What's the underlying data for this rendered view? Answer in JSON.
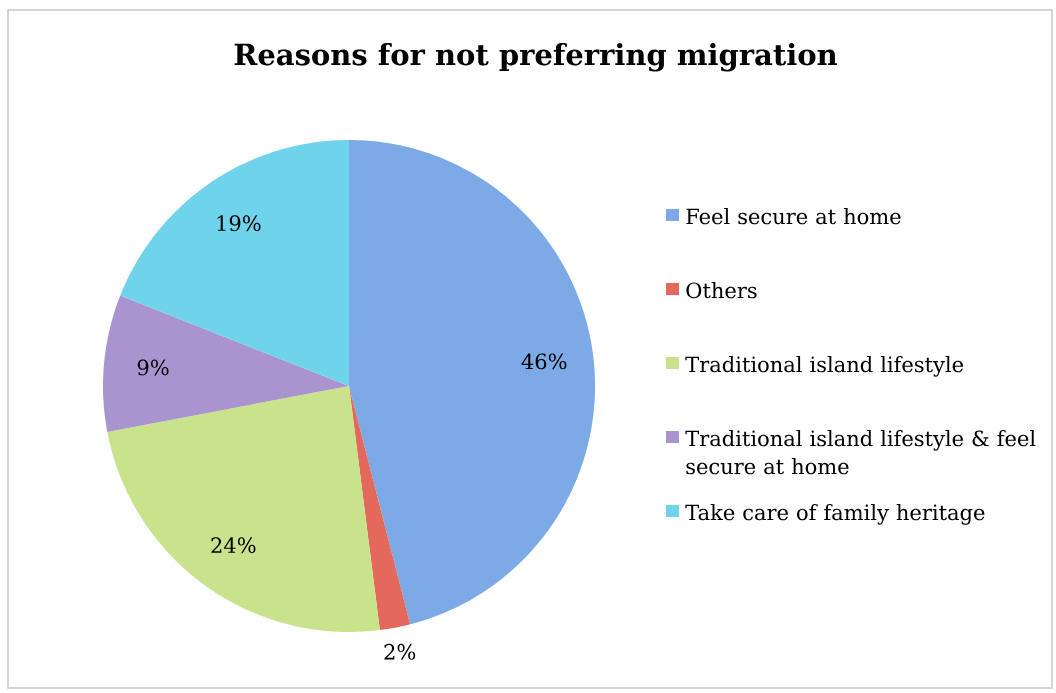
{
  "chart_data": {
    "type": "pie",
    "title": "Reasons for not preferring migration",
    "categories": [
      "Feel secure at home",
      "Others",
      "Traditional island lifestyle",
      "Traditional island lifestyle & feel secure at home",
      "Take care of family heritage"
    ],
    "values": [
      46,
      2,
      24,
      9,
      19
    ],
    "colors": [
      "#7BAAE6",
      "#E4695D",
      "#C9E38C",
      "#A994CF",
      "#6FD3EB"
    ],
    "value_labels": [
      "46%",
      "2%",
      "24%",
      "9%",
      "19%"
    ],
    "legend": "right"
  }
}
